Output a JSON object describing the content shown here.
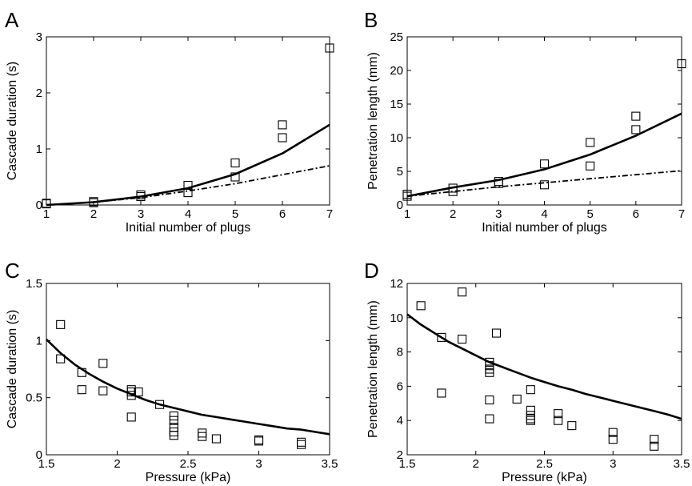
{
  "chart_data": [
    {
      "panel": "A",
      "type": "scatter",
      "xlabel": "Initial number of plugs",
      "ylabel": "Cascade duration (s)",
      "xlim": [
        1,
        7
      ],
      "ylim": [
        0,
        3
      ],
      "xticks": [
        1,
        2,
        3,
        4,
        5,
        6,
        7
      ],
      "yticks": [
        0,
        1,
        2,
        3
      ],
      "grid": false,
      "series": [
        {
          "kind": "markers",
          "marker": "square",
          "points": [
            [
              1,
              0.02
            ],
            [
              1,
              0.03
            ],
            [
              2,
              0.04
            ],
            [
              2,
              0.06
            ],
            [
              3,
              0.15
            ],
            [
              3,
              0.18
            ],
            [
              4,
              0.22
            ],
            [
              4,
              0.35
            ],
            [
              5,
              0.5
            ],
            [
              5,
              0.75
            ],
            [
              6,
              1.2
            ],
            [
              6,
              1.43
            ],
            [
              7,
              2.8
            ]
          ]
        },
        {
          "kind": "line",
          "style": "solid",
          "points": [
            [
              1,
              0
            ],
            [
              2,
              0.05
            ],
            [
              3,
              0.15
            ],
            [
              4,
              0.3
            ],
            [
              5,
              0.55
            ],
            [
              6,
              0.92
            ],
            [
              7,
              1.43
            ]
          ]
        },
        {
          "kind": "line",
          "style": "dashdot",
          "points": [
            [
              1,
              0
            ],
            [
              2,
              0.05
            ],
            [
              3,
              0.13
            ],
            [
              4,
              0.25
            ],
            [
              5,
              0.38
            ],
            [
              6,
              0.54
            ],
            [
              7,
              0.7
            ]
          ]
        }
      ]
    },
    {
      "panel": "B",
      "type": "scatter",
      "xlabel": "Initial number of plugs",
      "ylabel": "Penetration length (mm)",
      "xlim": [
        1,
        7
      ],
      "ylim": [
        0,
        25
      ],
      "xticks": [
        1,
        2,
        3,
        4,
        5,
        6,
        7
      ],
      "yticks": [
        0,
        5,
        10,
        15,
        20,
        25
      ],
      "grid": false,
      "series": [
        {
          "kind": "markers",
          "marker": "square",
          "points": [
            [
              1,
              1.3
            ],
            [
              1,
              1.6
            ],
            [
              2,
              2.0
            ],
            [
              2,
              2.5
            ],
            [
              3,
              3.2
            ],
            [
              3,
              3.5
            ],
            [
              4,
              3.0
            ],
            [
              4,
              6.1
            ],
            [
              5,
              5.8
            ],
            [
              5,
              9.3
            ],
            [
              6,
              11.2
            ],
            [
              6,
              13.2
            ],
            [
              7,
              21.0
            ]
          ]
        },
        {
          "kind": "line",
          "style": "solid",
          "points": [
            [
              1,
              1.3
            ],
            [
              2,
              2.6
            ],
            [
              3,
              3.7
            ],
            [
              4,
              5.3
            ],
            [
              5,
              7.5
            ],
            [
              6,
              10.3
            ],
            [
              7,
              13.6
            ]
          ]
        },
        {
          "kind": "line",
          "style": "dashdot",
          "points": [
            [
              1,
              1.3
            ],
            [
              2,
              2.0
            ],
            [
              3,
              2.7
            ],
            [
              4,
              3.3
            ],
            [
              5,
              3.9
            ],
            [
              6,
              4.5
            ],
            [
              7,
              5.1
            ]
          ]
        }
      ]
    },
    {
      "panel": "C",
      "type": "scatter",
      "xlabel": "Pressure (kPa)",
      "ylabel": "Cascade duration (s)",
      "xlim": [
        1.5,
        3.5
      ],
      "ylim": [
        0,
        1.5
      ],
      "xticks": [
        1.5,
        2,
        2.5,
        3,
        3.5
      ],
      "yticks": [
        0,
        0.5,
        1,
        1.5
      ],
      "grid": false,
      "series": [
        {
          "kind": "markers",
          "marker": "square",
          "points": [
            [
              1.6,
              1.14
            ],
            [
              1.6,
              0.84
            ],
            [
              1.75,
              0.72
            ],
            [
              1.75,
              0.57
            ],
            [
              1.9,
              0.8
            ],
            [
              1.9,
              0.56
            ],
            [
              2.1,
              0.57
            ],
            [
              2.1,
              0.55
            ],
            [
              2.1,
              0.52
            ],
            [
              2.1,
              0.33
            ],
            [
              2.15,
              0.55
            ],
            [
              2.3,
              0.44
            ],
            [
              2.4,
              0.34
            ],
            [
              2.4,
              0.3
            ],
            [
              2.4,
              0.24
            ],
            [
              2.4,
              0.2
            ],
            [
              2.4,
              0.17
            ],
            [
              2.6,
              0.19
            ],
            [
              2.6,
              0.16
            ],
            [
              2.7,
              0.14
            ],
            [
              3.0,
              0.13
            ],
            [
              3.0,
              0.12
            ],
            [
              3.3,
              0.11
            ],
            [
              3.3,
              0.09
            ]
          ]
        },
        {
          "kind": "line",
          "style": "solid",
          "points": [
            [
              1.5,
              1.01
            ],
            [
              1.6,
              0.89
            ],
            [
              1.7,
              0.79
            ],
            [
              1.8,
              0.71
            ],
            [
              1.9,
              0.64
            ],
            [
              2.0,
              0.58
            ],
            [
              2.1,
              0.53
            ],
            [
              2.2,
              0.48
            ],
            [
              2.3,
              0.44
            ],
            [
              2.4,
              0.41
            ],
            [
              2.5,
              0.38
            ],
            [
              2.6,
              0.35
            ],
            [
              2.7,
              0.33
            ],
            [
              2.8,
              0.31
            ],
            [
              2.9,
              0.29
            ],
            [
              3.0,
              0.27
            ],
            [
              3.1,
              0.25
            ],
            [
              3.2,
              0.23
            ],
            [
              3.3,
              0.22
            ],
            [
              3.4,
              0.2
            ],
            [
              3.5,
              0.18
            ]
          ]
        }
      ]
    },
    {
      "panel": "D",
      "type": "scatter",
      "xlabel": "Pressure (kPa)",
      "ylabel": "Penetration length (mm)",
      "xlim": [
        1.5,
        3.5
      ],
      "ylim": [
        2,
        12
      ],
      "xticks": [
        1.5,
        2,
        2.5,
        3,
        3.5
      ],
      "yticks": [
        2,
        4,
        6,
        8,
        10,
        12
      ],
      "grid": false,
      "series": [
        {
          "kind": "markers",
          "marker": "square",
          "points": [
            [
              1.6,
              10.7
            ],
            [
              1.75,
              8.85
            ],
            [
              1.75,
              5.6
            ],
            [
              1.9,
              11.5
            ],
            [
              1.9,
              8.75
            ],
            [
              2.1,
              7.4
            ],
            [
              2.1,
              7.2
            ],
            [
              2.1,
              7.0
            ],
            [
              2.1,
              6.8
            ],
            [
              2.1,
              5.2
            ],
            [
              2.1,
              4.1
            ],
            [
              2.15,
              9.1
            ],
            [
              2.3,
              5.25
            ],
            [
              2.4,
              5.8
            ],
            [
              2.4,
              4.6
            ],
            [
              2.4,
              4.3
            ],
            [
              2.4,
              4.1
            ],
            [
              2.4,
              4.0
            ],
            [
              2.6,
              4.4
            ],
            [
              2.6,
              4.0
            ],
            [
              2.7,
              3.7
            ],
            [
              3.0,
              3.3
            ],
            [
              3.0,
              2.9
            ],
            [
              3.3,
              2.9
            ],
            [
              3.3,
              2.5
            ]
          ]
        },
        {
          "kind": "line",
          "style": "solid",
          "points": [
            [
              1.5,
              10.2
            ],
            [
              1.6,
              9.6
            ],
            [
              1.7,
              9.1
            ],
            [
              1.8,
              8.6
            ],
            [
              1.9,
              8.2
            ],
            [
              2.0,
              7.8
            ],
            [
              2.1,
              7.4
            ],
            [
              2.2,
              7.1
            ],
            [
              2.3,
              6.8
            ],
            [
              2.4,
              6.5
            ],
            [
              2.5,
              6.25
            ],
            [
              2.6,
              6.0
            ],
            [
              2.7,
              5.8
            ],
            [
              2.8,
              5.55
            ],
            [
              2.9,
              5.35
            ],
            [
              3.0,
              5.15
            ],
            [
              3.1,
              4.95
            ],
            [
              3.2,
              4.75
            ],
            [
              3.3,
              4.55
            ],
            [
              3.4,
              4.35
            ],
            [
              3.5,
              4.1
            ]
          ]
        }
      ]
    }
  ]
}
